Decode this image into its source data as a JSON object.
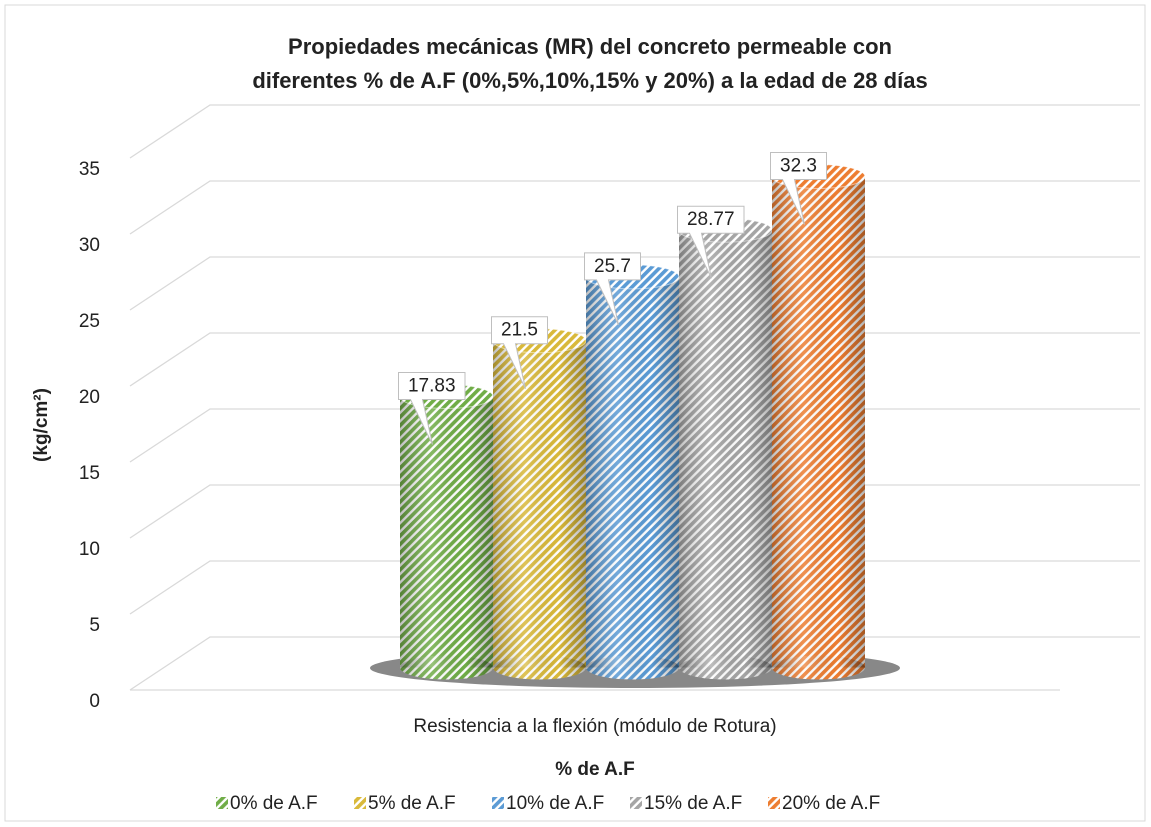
{
  "chart_data": {
    "type": "bar3d",
    "title": [
      "Propiedades mecánicas (MR) del concreto permeable con",
      "diferentes % de A.F (0%,5%,10%,15% y 20%) a la edad de 28 días"
    ],
    "categories": [
      "Resistencia a la flexión (módulo de Rotura)"
    ],
    "x_label": "% de A.F",
    "y_label": "(kg/cm²)",
    "series": [
      {
        "name": "0% de A.F",
        "color": "#70ad47",
        "values": [
          17.83
        ]
      },
      {
        "name": "5% de A.F",
        "color": "#d9b93a",
        "values": [
          21.5
        ]
      },
      {
        "name": "10% de A.F",
        "color": "#5b9bd5",
        "values": [
          25.7
        ]
      },
      {
        "name": "15% de A.F",
        "color": "#a5a5a5",
        "values": [
          28.77
        ]
      },
      {
        "name": "20% de A.F",
        "color": "#ed7d31",
        "values": [
          32.3
        ]
      }
    ],
    "ylim": [
      0,
      35
    ],
    "yticks": [
      0,
      5,
      10,
      15,
      20,
      25,
      30,
      35
    ],
    "grid": true,
    "legend": "bottom"
  }
}
